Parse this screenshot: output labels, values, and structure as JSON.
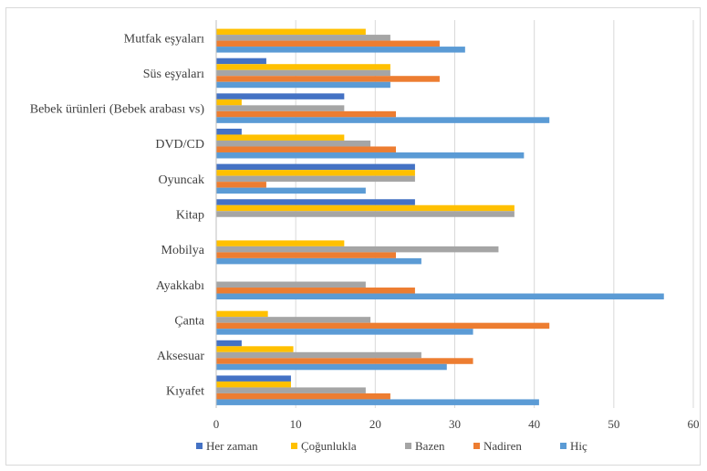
{
  "chart_data": {
    "type": "bar",
    "orientation": "horizontal",
    "title": "",
    "xlabel": "",
    "ylabel": "",
    "xlim": [
      0,
      60
    ],
    "x_ticks": [
      "0",
      "10",
      "20",
      "30",
      "40",
      "50",
      "60"
    ],
    "grid": "vertical",
    "legend_position": "bottom",
    "categories": [
      "Kıyafet",
      "Aksesuar",
      "Çanta",
      "Ayakkabı",
      "Mobilya",
      "Kitap",
      "Oyuncak",
      "DVD/CD",
      "Bebek ürünleri (Bebek arabası vs)",
      "Süs eşyaları",
      "Mutfak eşyaları"
    ],
    "series": [
      {
        "name": "Her zaman",
        "color": "#4472c4",
        "values": [
          9.4,
          3.2,
          0,
          0,
          0,
          25.0,
          25.0,
          3.2,
          16.1,
          6.3,
          0
        ]
      },
      {
        "name": "Çoğunlukla",
        "color": "#ffc000",
        "values": [
          9.4,
          9.7,
          6.5,
          0,
          16.1,
          37.5,
          25.0,
          16.1,
          3.2,
          21.9,
          18.8
        ]
      },
      {
        "name": "Bazen",
        "color": "#a5a5a5",
        "values": [
          18.8,
          25.8,
          19.4,
          18.8,
          35.5,
          37.5,
          25.0,
          19.4,
          16.1,
          21.9,
          21.9
        ]
      },
      {
        "name": "Nadiren",
        "color": "#ed7d31",
        "values": [
          21.9,
          32.3,
          41.9,
          25.0,
          22.6,
          0,
          6.3,
          22.6,
          22.6,
          28.1,
          28.1
        ]
      },
      {
        "name": "Hiç",
        "color": "#5b9bd5",
        "values": [
          40.6,
          29.0,
          32.3,
          56.3,
          25.8,
          0,
          18.8,
          38.7,
          41.9,
          21.9,
          31.3
        ]
      }
    ]
  }
}
